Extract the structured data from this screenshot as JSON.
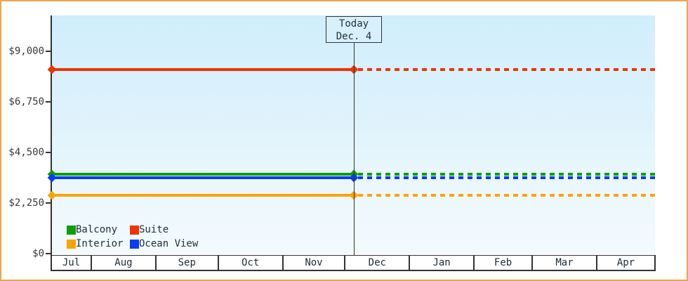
{
  "colors": {
    "frame_border": "#e9a64f",
    "plot_bg_top": "#cfeefb",
    "plot_bg_bottom": "#f3fafd",
    "axis": "#333333",
    "today_box_bg": "#d8f0fb"
  },
  "chart_data": {
    "type": "line",
    "title": "",
    "x_axis": {
      "categories": [
        "Jul",
        "Aug",
        "Sep",
        "Oct",
        "Nov",
        "Dec",
        "Jan",
        "Feb",
        "Mar",
        "Apr"
      ],
      "month_days": [
        19,
        31,
        30,
        31,
        30,
        31,
        31,
        28,
        31,
        28
      ]
    },
    "y_axis": {
      "ticks": [
        {
          "label": "$9,000",
          "value": 9000
        },
        {
          "label": "$6,750",
          "value": 6750
        },
        {
          "label": "$4,500",
          "value": 4500
        },
        {
          "label": "$2,250",
          "value": 2250
        },
        {
          "label": "$0",
          "value": 0
        }
      ],
      "ylim": [
        0,
        10570
      ],
      "grid": false
    },
    "today": {
      "line1": "Today",
      "line2": "Dec. 4",
      "month": "Dec",
      "day": 4
    },
    "series": [
      {
        "name": "Suite",
        "color": "#ee3405",
        "value": 8170
      },
      {
        "name": "Balcony",
        "color": "#0aa00a",
        "value": 3525
      },
      {
        "name": "Ocean View",
        "color": "#0a3df2",
        "value": 3370
      },
      {
        "name": "Interior",
        "color": "#ffa203",
        "value": 2590
      }
    ],
    "line_style": {
      "before_today": "solid",
      "after_today": "dashed",
      "marker": "diamond",
      "marker_positions": [
        "start",
        "today"
      ]
    },
    "legend": {
      "position": "inside-bottom-left",
      "rows": [
        [
          "Balcony",
          "Suite"
        ],
        [
          "Interior",
          "Ocean View"
        ]
      ]
    }
  }
}
